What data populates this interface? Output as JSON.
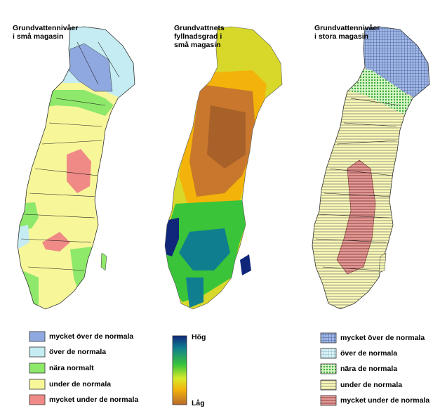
{
  "panels": [
    {
      "title": "Grundvattennivåer\ni små magasin"
    },
    {
      "title": "Grundvattnets\nfyllnadsgrad i\nsmå magasin"
    },
    {
      "title": "Grundvattennivåer\ni stora magasin"
    }
  ],
  "legend_left": [
    {
      "label": "mycket över de normala",
      "color": "#8fa9e0"
    },
    {
      "label": "över de normala",
      "color": "#c4ecf2"
    },
    {
      "label": "nära normalt",
      "color": "#8ee86a"
    },
    {
      "label": "under de normala",
      "color": "#f7f79a"
    },
    {
      "label": "mycket under de normala",
      "color": "#f08a86"
    }
  ],
  "legend_right": [
    {
      "label": "mycket över de normala",
      "pattern": "grid-blue"
    },
    {
      "label": "över de normala",
      "pattern": "grid-lightblue"
    },
    {
      "label": "nära de normala",
      "pattern": "dots-green"
    },
    {
      "label": "under de normala",
      "pattern": "stripes-yellow"
    },
    {
      "label": "mycket under de normala",
      "pattern": "stripes-red"
    }
  ],
  "color_scale": {
    "high": "Hög",
    "low": "Låg"
  }
}
